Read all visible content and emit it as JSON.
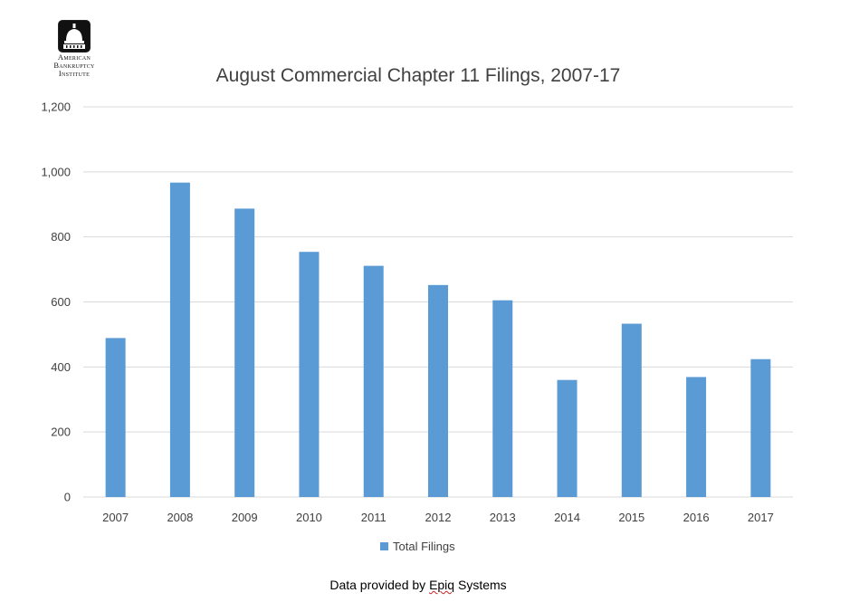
{
  "logo": {
    "line1": "American",
    "line2": "Bankruptcy",
    "line3": "Institute"
  },
  "footer": {
    "prefix": "Data provided by ",
    "epiq": "Epiq",
    "suffix": " Systems"
  },
  "colors": {
    "bar": "#5b9bd5",
    "grid": "#d9d9d9",
    "text": "#404040"
  },
  "chart_data": {
    "type": "bar",
    "title": "August Commercial Chapter 11 Filings, 2007-17",
    "xlabel": "",
    "ylabel": "",
    "categories": [
      "2007",
      "2008",
      "2009",
      "2010",
      "2011",
      "2012",
      "2013",
      "2014",
      "2015",
      "2016",
      "2017"
    ],
    "series": [
      {
        "name": "Total Filings",
        "values": [
          489,
          967,
          887,
          754,
          711,
          652,
          605,
          360,
          533,
          369,
          424
        ]
      }
    ],
    "ylim": [
      0,
      1200
    ],
    "yticks": [
      "0",
      "200",
      "400",
      "600",
      "800",
      "1,000",
      "1,200"
    ],
    "grid": true,
    "legend_position": "bottom"
  }
}
